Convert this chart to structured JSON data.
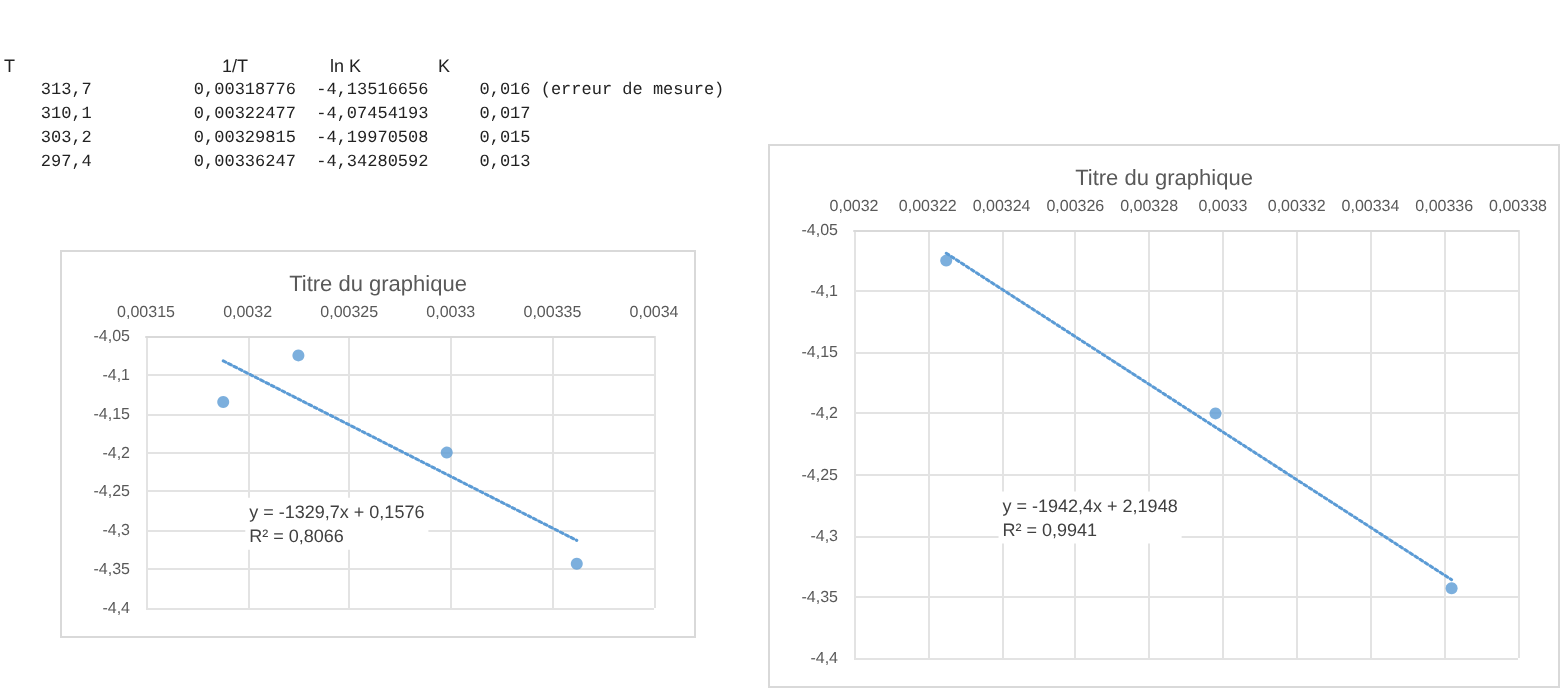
{
  "chart_data": [
    {
      "type": "other",
      "annotations": [
        "T",
        "1/T",
        "ln K",
        "K",
        "313,7",
        "0,00318776",
        "-4,13516656",
        "0,016",
        "(erreur de mesure)",
        "310,1",
        "0,00322477",
        "-4,07454193",
        "0,017",
        "303,2",
        "0,00329815",
        "-4,19970508",
        "0,015",
        "297,4",
        "0,00336247",
        "-4,34280592",
        "0,013"
      ]
    },
    {
      "type": "scatter",
      "title": "Titre du graphique",
      "marker": "circle",
      "grid": true,
      "xlim": [
        0.00315,
        0.0034
      ],
      "xticks": [
        {
          "value": 0.00315,
          "label": "0,00315"
        },
        {
          "value": 0.0032,
          "label": "0,0032"
        },
        {
          "value": 0.00325,
          "label": "0,00325"
        },
        {
          "value": 0.0033,
          "label": "0,0033"
        },
        {
          "value": 0.00335,
          "label": "0,00335"
        },
        {
          "value": 0.0034,
          "label": "0,0034"
        }
      ],
      "ylim": [
        -4.4,
        -4.05
      ],
      "yticks": [
        {
          "value": -4.4,
          "label": "-4,4"
        },
        {
          "value": -4.35,
          "label": "-4,35"
        },
        {
          "value": -4.3,
          "label": "-4,3"
        },
        {
          "value": -4.25,
          "label": "-4,25"
        },
        {
          "value": -4.2,
          "label": "-4,2"
        },
        {
          "value": -4.15,
          "label": "-4,15"
        },
        {
          "value": -4.1,
          "label": "-4,1"
        },
        {
          "value": -4.05,
          "label": "-4,05"
        }
      ],
      "series": [
        {
          "color": "#5b9bd5",
          "x": [
            0.003188,
            0.003225,
            0.003298,
            0.003362
          ],
          "values": [
            -4.135,
            -4.075,
            -4.2,
            -4.343
          ]
        },
        {
          "type": "line",
          "line_style": "dotted",
          "marker": "none",
          "color": "#5b9bd5",
          "x": [
            0.003188,
            0.003362
          ],
          "values": [
            -4.082,
            -4.313
          ]
        }
      ],
      "annotations": [
        "y = -1329,7x + 0,1576",
        "R² = 0,8066"
      ]
    },
    {
      "type": "scatter",
      "title": "Titre du graphique",
      "marker": "circle",
      "grid": true,
      "xlim": [
        0.0032,
        0.00338
      ],
      "xticks": [
        {
          "value": 0.0032,
          "label": "0,0032"
        },
        {
          "value": 0.00322,
          "label": "0,00322"
        },
        {
          "value": 0.00324,
          "label": "0,00324"
        },
        {
          "value": 0.00326,
          "label": "0,00326"
        },
        {
          "value": 0.00328,
          "label": "0,00328"
        },
        {
          "value": 0.0033,
          "label": "0,0033"
        },
        {
          "value": 0.00332,
          "label": "0,00332"
        },
        {
          "value": 0.00334,
          "label": "0,00334"
        },
        {
          "value": 0.00336,
          "label": "0,00336"
        },
        {
          "value": 0.00338,
          "label": "0,00338"
        }
      ],
      "ylim": [
        -4.4,
        -4.05
      ],
      "yticks": [
        {
          "value": -4.4,
          "label": "-4,4"
        },
        {
          "value": -4.35,
          "label": "-4,35"
        },
        {
          "value": -4.3,
          "label": "-4,3"
        },
        {
          "value": -4.25,
          "label": "-4,25"
        },
        {
          "value": -4.2,
          "label": "-4,2"
        },
        {
          "value": -4.15,
          "label": "-4,15"
        },
        {
          "value": -4.1,
          "label": "-4,1"
        },
        {
          "value": -4.05,
          "label": "-4,05"
        }
      ],
      "series": [
        {
          "color": "#5b9bd5",
          "x": [
            0.003225,
            0.003298,
            0.003362
          ],
          "values": [
            -4.075,
            -4.2,
            -4.343
          ]
        },
        {
          "type": "line",
          "line_style": "dotted",
          "marker": "none",
          "color": "#5b9bd5",
          "x": [
            0.003225,
            0.003362
          ],
          "values": [
            -4.069,
            -4.336
          ]
        }
      ],
      "annotations": [
        "y = -1942,4x + 2,1948",
        "R² = 0,9941"
      ]
    }
  ]
}
